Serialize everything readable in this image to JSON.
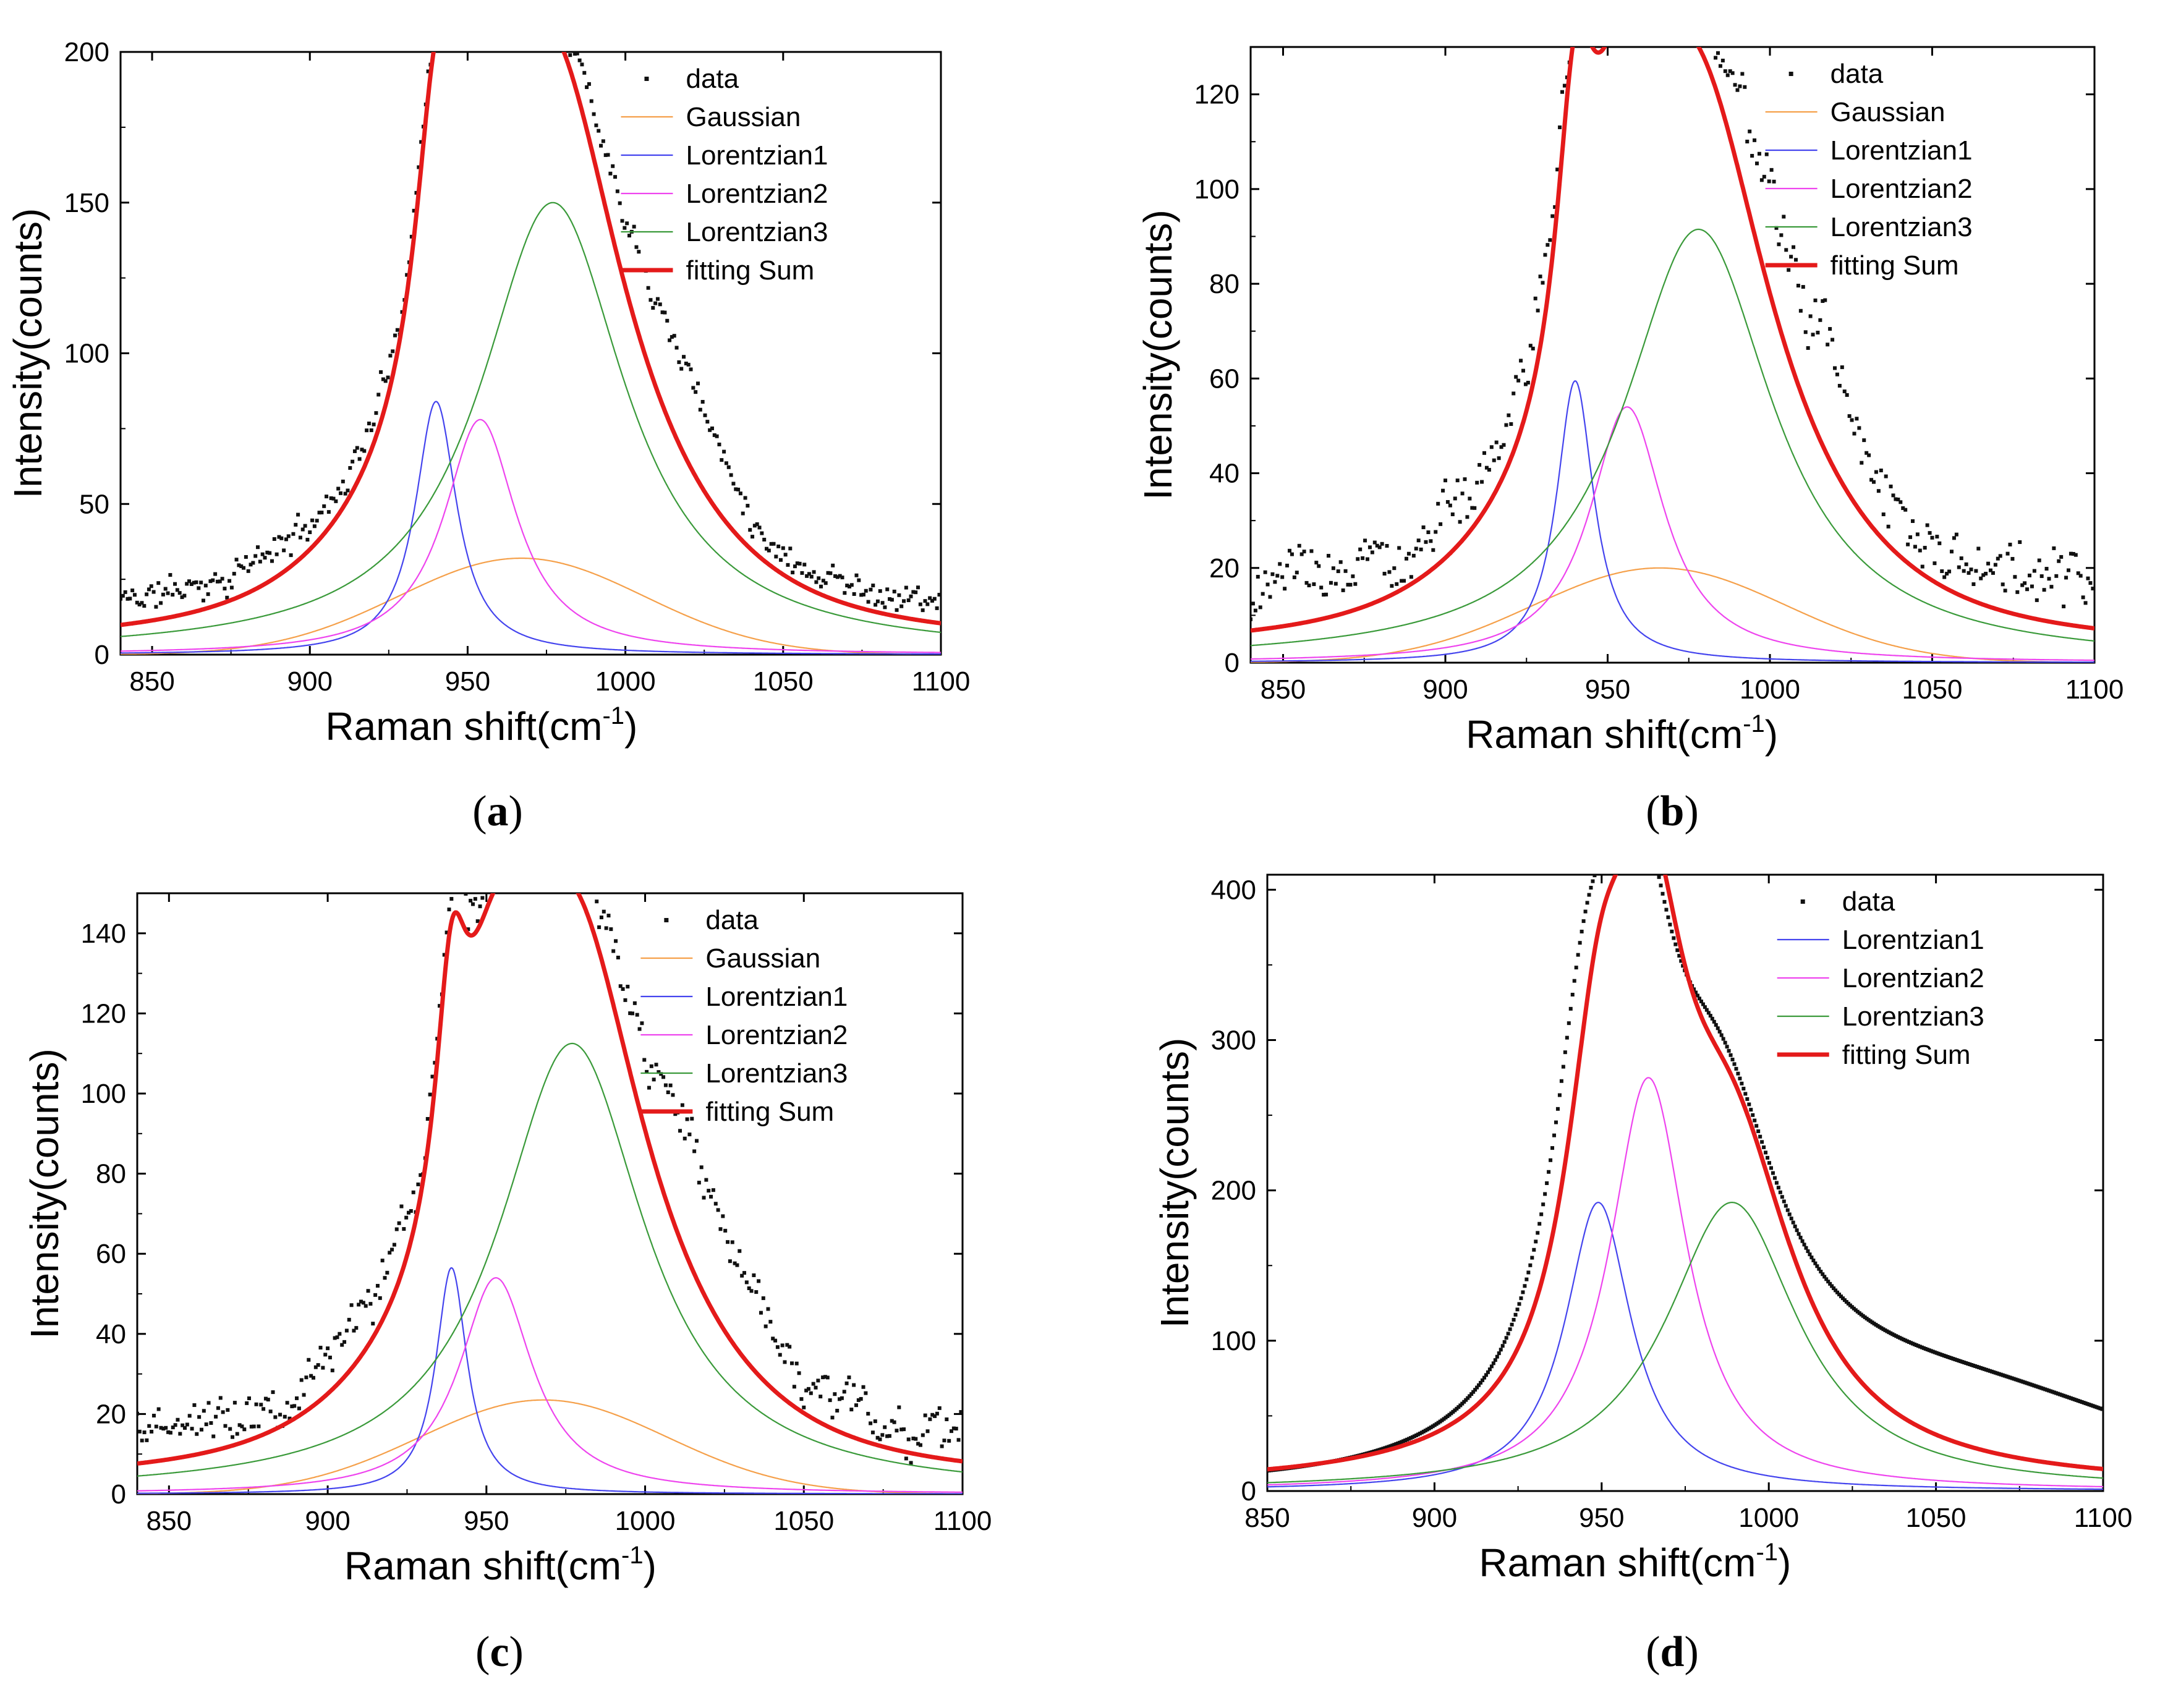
{
  "chart_data": [
    {
      "id": "a",
      "type": "line",
      "caption_letter": "a",
      "caption_open": "(",
      "caption_close": ")",
      "xlabel_main": "Raman shift(cm",
      "xlabel_sup": "-1",
      "xlabel_end": ")",
      "ylabel": "Intensity(counts)",
      "xlim": [
        840,
        1100
      ],
      "ylim": [
        0,
        200
      ],
      "xticks": [
        850,
        900,
        950,
        1000,
        1050,
        1100
      ],
      "yticks": [
        0,
        50,
        100,
        150,
        200
      ],
      "grid": false,
      "legend_position": "top-right",
      "noise": {
        "seed": 11,
        "amp": 3.5,
        "wave": 3.0
      },
      "background": [
        {
          "x0": 1003,
          "x1": 1015,
          "amp": 22,
          "w": 14
        },
        {
          "x0": 1020,
          "x1": 1030,
          "amp": 8,
          "w": 10
        }
      ],
      "series": [
        {
          "name": "data",
          "kind": "dots",
          "color": "#111111"
        },
        {
          "name": "Gaussian",
          "kind": "gauss",
          "color": "#f5a04a",
          "center": 967,
          "amp": 32,
          "width": 55
        },
        {
          "name": "Lorentzian1",
          "kind": "lorentz",
          "color": "#4444ee",
          "center": 940,
          "amp": 84,
          "width": 8
        },
        {
          "name": "Lorentzian2",
          "kind": "lorentz",
          "color": "#ee44ee",
          "center": 954,
          "amp": 78,
          "width": 14
        },
        {
          "name": "Lorentzian3",
          "kind": "lorentz",
          "color": "#3a9a3a",
          "center": 977,
          "amp": 150,
          "width": 28
        },
        {
          "name": "fitting Sum",
          "kind": "sum",
          "color": "#e41a1a"
        }
      ]
    },
    {
      "id": "b",
      "type": "line",
      "caption_letter": "b",
      "caption_open": "(",
      "caption_close": ")",
      "xlabel_main": "Raman shift(cm",
      "xlabel_sup": "-1",
      "xlabel_end": ")",
      "ylabel": "Intensity(counts)",
      "xlim": [
        840,
        1100
      ],
      "ylim": [
        0,
        130
      ],
      "xticks": [
        850,
        900,
        950,
        1000,
        1050,
        1100
      ],
      "yticks": [
        0,
        20,
        40,
        60,
        80,
        100,
        120
      ],
      "grid": false,
      "legend_position": "top-right",
      "noise": {
        "seed": 23,
        "amp": 4.5,
        "wave": 3.5
      },
      "background": [
        {
          "x0": 1000,
          "x1": 1025,
          "amp": 16,
          "w": 14
        },
        {
          "x0": 1070,
          "x1": 1100,
          "amp": 4,
          "w": 10
        }
      ],
      "series": [
        {
          "name": "data",
          "kind": "dots",
          "color": "#111111"
        },
        {
          "name": "Gaussian",
          "kind": "gauss",
          "color": "#f5a04a",
          "center": 966,
          "amp": 20,
          "width": 55
        },
        {
          "name": "Lorentzian1",
          "kind": "lorentz",
          "color": "#4444ee",
          "center": 940,
          "amp": 59.5,
          "width": 7
        },
        {
          "name": "Lorentzian2",
          "kind": "lorentz",
          "color": "#ee44ee",
          "center": 956,
          "amp": 54,
          "width": 14
        },
        {
          "name": "Lorentzian3",
          "kind": "lorentz",
          "color": "#3a9a3a",
          "center": 978,
          "amp": 91.5,
          "width": 28
        },
        {
          "name": "fitting Sum",
          "kind": "sum",
          "color": "#e41a1a"
        }
      ]
    },
    {
      "id": "c",
      "type": "line",
      "caption_letter": "c",
      "caption_open": "(",
      "caption_close": ")",
      "xlabel_main": "Raman shift(cm",
      "xlabel_sup": "-1",
      "xlabel_end": ")",
      "ylabel": "Intensity(counts)",
      "xlim": [
        840,
        1100
      ],
      "ylim": [
        0,
        150
      ],
      "xticks": [
        850,
        900,
        950,
        1000,
        1050,
        1100
      ],
      "yticks": [
        0,
        20,
        40,
        60,
        80,
        100,
        120,
        140
      ],
      "grid": false,
      "legend_position": "top-right",
      "noise": {
        "seed": 37,
        "amp": 4.0,
        "wave": 3.5
      },
      "background": [
        {
          "x0": 1000,
          "x1": 1025,
          "amp": 20,
          "w": 12
        },
        {
          "x0": 1025,
          "x1": 1040,
          "amp": 6,
          "w": 10
        }
      ],
      "series": [
        {
          "name": "data",
          "kind": "dots",
          "color": "#111111"
        },
        {
          "name": "Gaussian",
          "kind": "gauss",
          "color": "#f5a04a",
          "center": 968,
          "amp": 23.5,
          "width": 55
        },
        {
          "name": "Lorentzian1",
          "kind": "lorentz",
          "color": "#4444ee",
          "center": 939,
          "amp": 56.5,
          "width": 6
        },
        {
          "name": "Lorentzian2",
          "kind": "lorentz",
          "color": "#ee44ee",
          "center": 953,
          "amp": 54,
          "width": 14
        },
        {
          "name": "Lorentzian3",
          "kind": "lorentz",
          "color": "#3a9a3a",
          "center": 977,
          "amp": 112.5,
          "width": 28
        },
        {
          "name": "fitting Sum",
          "kind": "sum",
          "color": "#e41a1a"
        }
      ]
    },
    {
      "id": "d",
      "type": "line",
      "caption_letter": "d",
      "caption_open": "(",
      "caption_close": ")",
      "xlabel_main": "Raman shift(cm",
      "xlabel_sup": "-1",
      "xlabel_end": ")",
      "ylabel": "Intensity(counts)",
      "xlim": [
        850,
        1100
      ],
      "ylim": [
        0,
        410
      ],
      "xticks": [
        850,
        900,
        950,
        1000,
        1050,
        1100
      ],
      "yticks": [
        0,
        100,
        200,
        300,
        400
      ],
      "grid": false,
      "legend_position": "top-right",
      "noise": {
        "seed": 5,
        "amp": 0,
        "wave": 0
      },
      "data_shift": 4,
      "background": [
        {
          "x0": 1000,
          "x1": 1100,
          "amp": 60,
          "w": 60
        }
      ],
      "series": [
        {
          "name": "data",
          "kind": "dots",
          "color": "#111111"
        },
        {
          "name": "Lorentzian1",
          "kind": "lorentz",
          "color": "#4444ee",
          "center": 949,
          "amp": 192,
          "width": 12
        },
        {
          "name": "Lorentzian2",
          "kind": "lorentz",
          "color": "#ee44ee",
          "center": 964,
          "amp": 275,
          "width": 14
        },
        {
          "name": "Lorentzian3",
          "kind": "lorentz",
          "color": "#3a9a3a",
          "center": 989,
          "amp": 192,
          "width": 24
        },
        {
          "name": "fitting Sum",
          "kind": "sum",
          "color": "#e41a1a"
        }
      ]
    }
  ]
}
